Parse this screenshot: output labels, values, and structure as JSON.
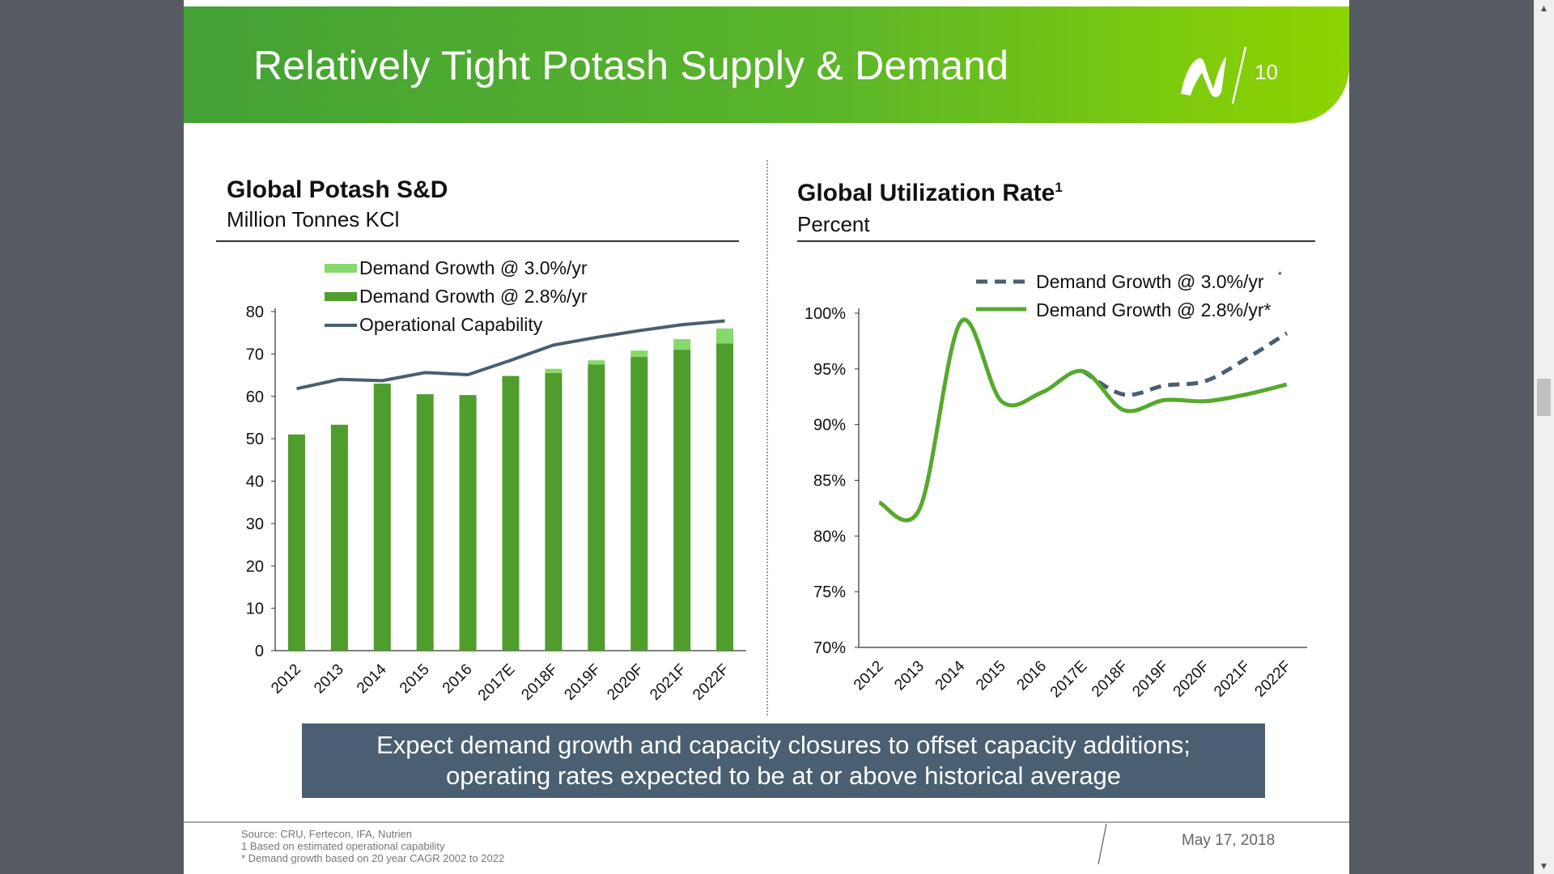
{
  "slide": {
    "title": "Relatively Tight Potash Supply & Demand",
    "page_number": "10",
    "callout_line1": "Expect demand growth and capacity closures to offset capacity additions;",
    "callout_line2": "operating rates expected to be at or above historical average",
    "footer": {
      "source": "Source: CRU, Fertecon, IFA, Nutrien",
      "note1": "1 Based on estimated operational capability",
      "note2": "* Demand growth based on 20 year CAGR 2002 to 2022",
      "date": "May 17, 2018"
    },
    "colors": {
      "header_start": "#43a135",
      "header_end": "#8ed400",
      "callout_bg": "#4a5f72"
    }
  },
  "chart_data": [
    {
      "type": "bar",
      "title": "Global Potash S&D",
      "subtitle": "Million Tonnes KCl",
      "categories": [
        "2012",
        "2013",
        "2014",
        "2015",
        "2016",
        "2017E",
        "2018F",
        "2019F",
        "2020F",
        "2021F",
        "2022F"
      ],
      "series": [
        {
          "name": "Demand Growth @ 3.0%/yr",
          "kind": "bar-stack-top",
          "color": "#86d96a",
          "values": [
            0,
            0,
            0,
            0,
            0,
            0,
            1,
            1,
            1.5,
            2.5,
            3.5
          ]
        },
        {
          "name": "Demand Growth @ 2.8%/yr",
          "kind": "bar",
          "color": "#4e9d2d",
          "values": [
            51,
            53.3,
            63,
            60.5,
            60.3,
            64.8,
            65.5,
            67.5,
            69.3,
            71,
            72.5
          ]
        },
        {
          "name": "Operational Capability",
          "kind": "line",
          "color": "#4b5e6f",
          "values": [
            61.8,
            64.0,
            63.7,
            65.6,
            65.1,
            68.5,
            72.1,
            73.9,
            75.5,
            76.9,
            77.8
          ]
        }
      ],
      "yticks": [
        "80",
        "70",
        "60",
        "50",
        "40",
        "30",
        "20",
        "10",
        "0"
      ],
      "ylim": [
        0,
        80
      ],
      "legend": [
        "Demand Growth @ 3.0%/yr",
        "Demand Growth @ 2.8%/yr",
        "Operational Capability"
      ],
      "legend_position": "top-left"
    },
    {
      "type": "line",
      "title": "Global Utilization Rate",
      "title_superscript": "1",
      "subtitle": "Percent",
      "categories": [
        "2012",
        "2013",
        "2014",
        "2015",
        "2016",
        "2017E",
        "2018F",
        "2019F",
        "2020F",
        "2021F",
        "2022F"
      ],
      "series": [
        {
          "name": "Demand Growth @ 3.0%/yr*",
          "style": "dashed",
          "color": "#4b5e6f",
          "values": [
            83.0,
            82.5,
            99.2,
            92.1,
            92.9,
            94.8,
            92.7,
            93.5,
            93.9,
            95.9,
            98.2
          ]
        },
        {
          "name": "Demand Growth @ 2.8%/yr*",
          "style": "solid",
          "color": "#56a92d",
          "values": [
            83.0,
            82.5,
            99.2,
            92.1,
            92.9,
            94.8,
            91.3,
            92.2,
            92.1,
            92.7,
            93.6
          ]
        }
      ],
      "yticks": [
        "100%",
        "95%",
        "90%",
        "85%",
        "80%",
        "75%",
        "70%"
      ],
      "ylim": [
        70,
        100
      ],
      "legend": [
        "Demand Growth @ 3.0%/yr",
        "Demand Growth @ 2.8%/yr*"
      ],
      "legend_position": "top-right"
    }
  ],
  "scrollbar": {
    "up_arrow": "▲",
    "down_arrow": "▼"
  }
}
